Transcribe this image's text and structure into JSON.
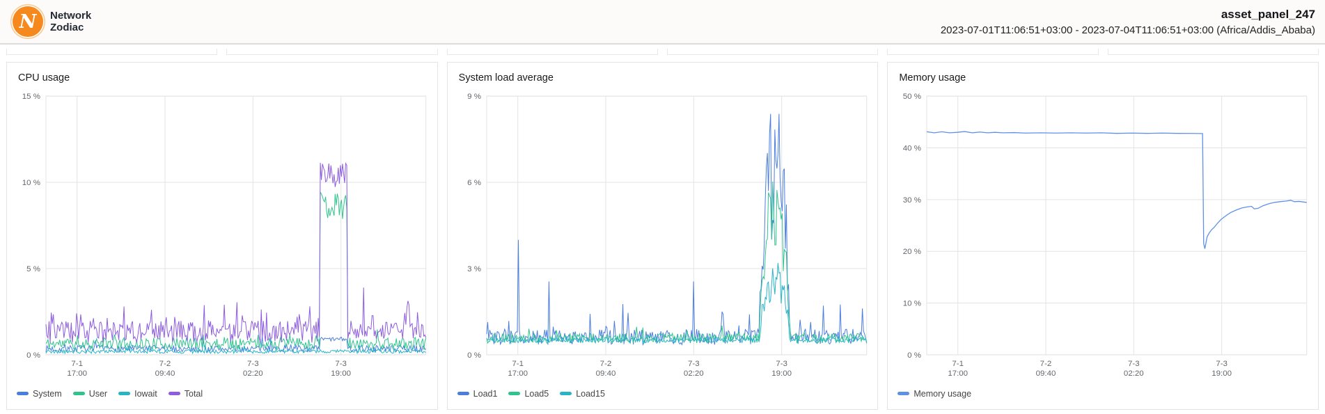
{
  "header": {
    "brand": {
      "logo_letter": "N",
      "name_line1": "Network",
      "name_line2": "Zodiac",
      "logo_color": "#f6891e"
    },
    "panel_title": "asset_panel_247",
    "date_range": "2023-07-01T11:06:51+03:00 - 2023-07-04T11:06:51+03:00 (Africa/Addis_Ababa)"
  },
  "colors": {
    "blue": "#4a7de0",
    "green": "#2fc48c",
    "teal": "#27b5c6",
    "purple": "#8d5ce0",
    "memory_blue": "#5f90e8",
    "grid": "#e3e3e3",
    "axis_text": "#63666b"
  },
  "chart_data": [
    {
      "type": "line",
      "title": "CPU usage",
      "ylabel": "",
      "xlabel": "",
      "ylim": [
        0,
        15
      ],
      "grid": true,
      "legend_position": "bottom-left",
      "yticks": [
        {
          "v": 0,
          "label": "0 %"
        },
        {
          "v": 5,
          "label": "5 %"
        },
        {
          "v": 10,
          "label": "10 %"
        },
        {
          "v": 15,
          "label": "15 %"
        }
      ],
      "xticks": [
        {
          "f": 0.082,
          "line1": "7-1",
          "line2": "17:00"
        },
        {
          "f": 0.3134,
          "line1": "7-2",
          "line2": "09:40"
        },
        {
          "f": 0.5449,
          "line1": "7-3",
          "line2": "02:20"
        },
        {
          "f": 0.7764,
          "line1": "7-3",
          "line2": "19:00"
        }
      ],
      "series": [
        {
          "name": "System",
          "color": "#4a7de0",
          "gen": {
            "seed": 7,
            "n": 360,
            "baseline": 0.15,
            "noise": 0.4,
            "spike_prob": 0.04,
            "spike_amp": 0.7,
            "burst": {
              "start": 0.722,
              "end": 0.792,
              "level": 0.9,
              "amp": 0.12
            }
          }
        },
        {
          "name": "User",
          "color": "#2fc48c",
          "gen": {
            "seed": 11,
            "n": 360,
            "baseline": 0.3,
            "noise": 0.7,
            "spike_prob": 0.05,
            "spike_amp": 0.8,
            "burst": {
              "start": 0.722,
              "end": 0.792,
              "level": 8.7,
              "amp": 0.85
            }
          }
        },
        {
          "name": "Iowait",
          "color": "#27b5c6",
          "gen": {
            "seed": 19,
            "n": 360,
            "baseline": 0.08,
            "noise": 0.22,
            "spike_prob": 0.03,
            "spike_amp": 0.35
          }
        },
        {
          "name": "Total",
          "color": "#8d5ce0",
          "gen": {
            "seed": 23,
            "n": 360,
            "baseline": 0.7,
            "noise": 1.3,
            "spike_prob": 0.1,
            "spike_amp": 1.5,
            "baseline2": 0.9,
            "noise2": 1.0,
            "burst": {
              "start": 0.722,
              "end": 0.792,
              "level": 10.45,
              "amp": 0.75
            },
            "spikes": [
              [
                0.205,
                2.8
              ],
              [
                0.47,
                2.9
              ],
              [
                0.835,
                3.9
              ],
              [
                0.955,
                2.9
              ]
            ]
          }
        }
      ]
    },
    {
      "type": "line",
      "title": "System load average",
      "ylabel": "",
      "xlabel": "",
      "ylim": [
        0,
        9
      ],
      "grid": true,
      "legend_position": "bottom-left",
      "yticks": [
        {
          "v": 0,
          "label": "0 %"
        },
        {
          "v": 3,
          "label": "3 %"
        },
        {
          "v": 6,
          "label": "6 %"
        },
        {
          "v": 9,
          "label": "9 %"
        }
      ],
      "xticks": [
        {
          "f": 0.082,
          "line1": "7-1",
          "line2": "17:00"
        },
        {
          "f": 0.3134,
          "line1": "7-2",
          "line2": "09:40"
        },
        {
          "f": 0.5449,
          "line1": "7-3",
          "line2": "02:20"
        },
        {
          "f": 0.7764,
          "line1": "7-3",
          "line2": "19:00"
        }
      ],
      "series": [
        {
          "name": "Load1",
          "color": "#4a7de0",
          "gen": {
            "seed": 31,
            "n": 360,
            "baseline": 0.35,
            "noise": 0.55,
            "spike_prob": 0.05,
            "spike_amp": 0.9,
            "burst": {
              "start": 0.718,
              "end": 0.798,
              "level": 6.4,
              "amp": 2.4,
              "envelope": true
            },
            "spikes": [
              [
                0.082,
                4.0
              ],
              [
                0.165,
                2.55
              ],
              [
                0.545,
                2.55
              ],
              [
                0.62,
                1.5
              ],
              [
                0.93,
                1.75
              ]
            ]
          }
        },
        {
          "name": "Load5",
          "color": "#2fc48c",
          "gen": {
            "seed": 37,
            "n": 360,
            "baseline": 0.4,
            "noise": 0.35,
            "spike_prob": 0.03,
            "spike_amp": 0.4,
            "burst": {
              "start": 0.718,
              "end": 0.798,
              "level": 4.9,
              "amp": 1.4,
              "envelope": true
            }
          }
        },
        {
          "name": "Load15",
          "color": "#27b5c6",
          "gen": {
            "seed": 41,
            "n": 360,
            "baseline": 0.42,
            "noise": 0.18,
            "burst": {
              "start": 0.718,
              "end": 0.798,
              "level": 2.6,
              "amp": 0.7,
              "envelope": true
            }
          }
        }
      ]
    },
    {
      "type": "line",
      "title": "Memory usage",
      "ylabel": "",
      "xlabel": "",
      "ylim": [
        0,
        50
      ],
      "grid": true,
      "legend_position": "bottom-left",
      "yticks": [
        {
          "v": 0,
          "label": "0 %"
        },
        {
          "v": 10,
          "label": "10 %"
        },
        {
          "v": 20,
          "label": "20 %"
        },
        {
          "v": 30,
          "label": "30 %"
        },
        {
          "v": 40,
          "label": "40 %"
        },
        {
          "v": 50,
          "label": "50 %"
        }
      ],
      "xticks": [
        {
          "f": 0.082,
          "line1": "7-1",
          "line2": "17:00"
        },
        {
          "f": 0.3134,
          "line1": "7-2",
          "line2": "09:40"
        },
        {
          "f": 0.5449,
          "line1": "7-3",
          "line2": "02:20"
        },
        {
          "f": 0.7764,
          "line1": "7-3",
          "line2": "19:00"
        }
      ],
      "series": [
        {
          "name": "Memory usage",
          "color": "#5f90e8",
          "width": 1.3,
          "points": [
            [
              0,
              43.1
            ],
            [
              0.02,
              42.9
            ],
            [
              0.04,
              43.1
            ],
            [
              0.06,
              42.9
            ],
            [
              0.08,
              43.0
            ],
            [
              0.1,
              43.15
            ],
            [
              0.12,
              42.9
            ],
            [
              0.14,
              43.05
            ],
            [
              0.16,
              42.9
            ],
            [
              0.18,
              43.0
            ],
            [
              0.2,
              42.9
            ],
            [
              0.23,
              42.95
            ],
            [
              0.26,
              42.85
            ],
            [
              0.3,
              42.9
            ],
            [
              0.34,
              42.85
            ],
            [
              0.38,
              42.9
            ],
            [
              0.42,
              42.85
            ],
            [
              0.46,
              42.9
            ],
            [
              0.5,
              42.8
            ],
            [
              0.54,
              42.85
            ],
            [
              0.58,
              42.8
            ],
            [
              0.62,
              42.85
            ],
            [
              0.66,
              42.8
            ],
            [
              0.7,
              42.78
            ],
            [
              0.726,
              42.75
            ],
            [
              0.729,
              21.5
            ],
            [
              0.732,
              20.5
            ],
            [
              0.738,
              22.8
            ],
            [
              0.744,
              23.6
            ],
            [
              0.75,
              24.2
            ],
            [
              0.756,
              24.6
            ],
            [
              0.765,
              25.4
            ],
            [
              0.775,
              26.2
            ],
            [
              0.79,
              27.0
            ],
            [
              0.8,
              27.5
            ],
            [
              0.815,
              28.0
            ],
            [
              0.83,
              28.4
            ],
            [
              0.845,
              28.6
            ],
            [
              0.855,
              28.7
            ],
            [
              0.862,
              28.2
            ],
            [
              0.872,
              28.3
            ],
            [
              0.885,
              28.8
            ],
            [
              0.9,
              29.2
            ],
            [
              0.915,
              29.45
            ],
            [
              0.93,
              29.6
            ],
            [
              0.945,
              29.7
            ],
            [
              0.958,
              29.85
            ],
            [
              0.968,
              29.6
            ],
            [
              0.98,
              29.65
            ],
            [
              1.0,
              29.45
            ]
          ]
        }
      ]
    }
  ]
}
